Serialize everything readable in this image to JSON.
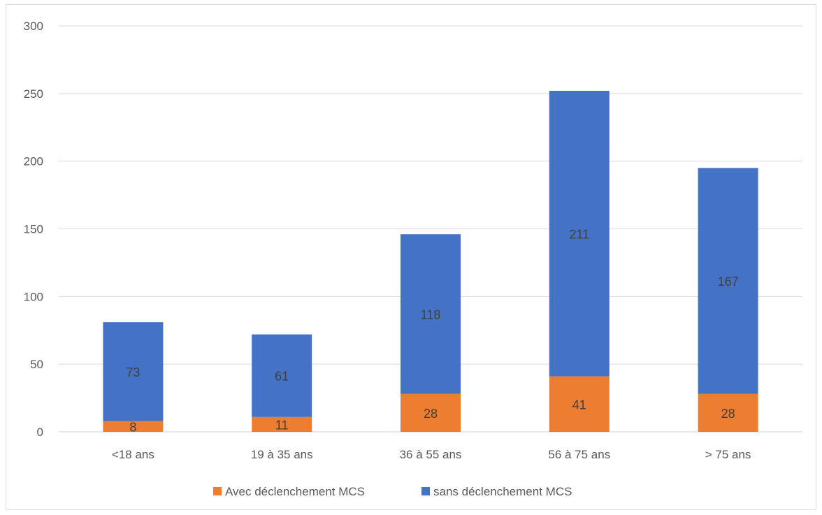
{
  "chart_data": {
    "type": "bar",
    "stacked": true,
    "title": "",
    "xlabel": "",
    "ylabel": "",
    "categories": [
      "<18 ans",
      "19 à 35 ans",
      "36 à 55 ans",
      "56 à 75 ans",
      "> 75 ans"
    ],
    "series": [
      {
        "name": "Avec déclenchement MCS",
        "values": [
          8,
          11,
          28,
          41,
          28
        ],
        "color": "#ed7d31"
      },
      {
        "name": "sans déclenchement MCS",
        "values": [
          73,
          61,
          118,
          211,
          167
        ],
        "color": "#4472c4"
      }
    ],
    "ylim": [
      0,
      300
    ],
    "yticks": [
      "0",
      "50",
      "100",
      "150",
      "200",
      "250",
      "300"
    ],
    "grid": true,
    "legend_position": "bottom"
  }
}
